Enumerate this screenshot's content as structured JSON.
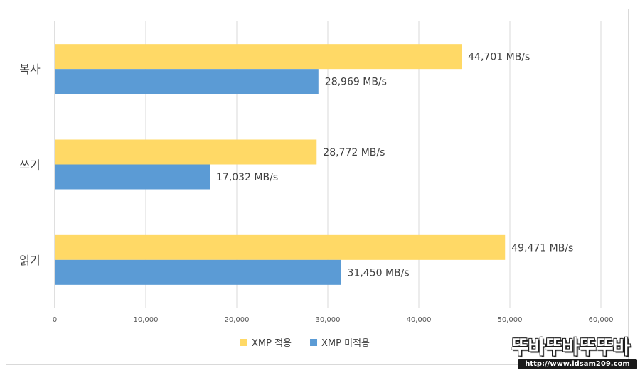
{
  "chart_data": {
    "type": "bar",
    "orientation": "horizontal",
    "categories": [
      "복사",
      "쓰기",
      "읽기"
    ],
    "series": [
      {
        "name": "XMP 적용",
        "values": [
          44701,
          28772,
          49471
        ],
        "labels": [
          "44,701 MB/s",
          "28,772 MB/s",
          "49,471 MB/s"
        ],
        "color": "#ffd966"
      },
      {
        "name": "XMP 미적용",
        "values": [
          28969,
          17032,
          31450
        ],
        "labels": [
          "28,969 MB/s",
          "17,032 MB/s",
          "31,450 MB/s"
        ],
        "color": "#5b9bd5"
      }
    ],
    "xlim": [
      0,
      60000
    ],
    "xticks": [
      "0",
      "10,000",
      "20,000",
      "30,000",
      "40,000",
      "50,000",
      "60,000"
    ],
    "xlabel": "",
    "ylabel": "",
    "grid": true,
    "legend": "bottom"
  },
  "watermark": {
    "main": "뚜바뚜바뚜뚜바",
    "url": "http://www.idsam209.com"
  },
  "colors": {
    "gridline": "#d9d9d9",
    "axis": "#bfbfbf",
    "frame": "#d9d9d9"
  }
}
